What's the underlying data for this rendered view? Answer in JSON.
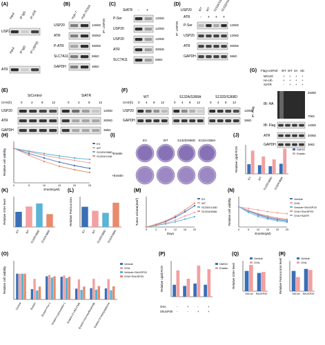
{
  "panels": {
    "A": {
      "letter": "(A)",
      "col_headers": [
        "Input",
        "IP IgG",
        "IP ATR"
      ],
      "rows": [
        "USP20",
        "ATR"
      ],
      "col_headers_b": [
        "Input",
        "IP IgG",
        "IP USP20"
      ]
    },
    "B": {
      "letter": "(B)",
      "col_headers": [
        "Huh-7",
        "Huh-7/OXA"
      ],
      "rows": [
        "USP20",
        "ATR",
        "P-ATR",
        "SLC7A11",
        "GAPDH"
      ],
      "kd": [
        "120kD",
        "300kD",
        "300kD",
        "55kD",
        "36kD"
      ]
    },
    "C": {
      "letter": "(C)",
      "treat": "SiATR",
      "signs": [
        "-",
        "+"
      ],
      "ip": "IP: USP20",
      "rows": [
        "P-Ser",
        "USP20",
        "USP20",
        "ATR",
        "SLC7A11"
      ],
      "kd": [
        "120kD",
        "120kD",
        "120kD",
        "300kD",
        "55kD"
      ]
    },
    "D": {
      "letter": "(D)",
      "header1": "USP20",
      "cols": [
        "WT",
        "WT",
        "S132A/S368A",
        "S132D/S368D"
      ],
      "header2": "ATR",
      "signs": [
        "-",
        "+",
        "+",
        "+"
      ],
      "ip": "IP: USP20",
      "rows": [
        "P-Ser",
        "USP20",
        "ATR",
        "GAPDH"
      ],
      "kd": [
        "120kD",
        "120kD",
        "300kD",
        "36kD"
      ]
    },
    "E": {
      "letter": "(E)",
      "groups": [
        "SiControl",
        "SiATR"
      ],
      "chx": "CHX(h)",
      "times": [
        "0",
        "4",
        "8",
        "12",
        "0",
        "4",
        "8",
        "12"
      ],
      "rows": [
        "USP20",
        "ATR",
        "GAPDH"
      ],
      "kd": [
        "120kD",
        "300kD",
        "36kD"
      ]
    },
    "F": {
      "letter": "(F)",
      "groups": [
        "WT",
        "S132A/S368A",
        "S132D/S368D"
      ],
      "chx": "CHX(h)",
      "times": [
        "0",
        "4",
        "8",
        "12"
      ],
      "rows": [
        "USP20",
        "GAPDH"
      ],
      "kd": [
        "120kD",
        "36kD"
      ]
    },
    "G": {
      "letter": "(G)",
      "flag": "Flag-USP20",
      "cols": [
        "WT",
        "WT",
        "SA",
        "SD"
      ],
      "mg132": "MG132",
      "haub": "HA-Ub",
      "siatr": "SiATR",
      "ip": "IP: Flag",
      "ib_ha": "IB: HA",
      "ib_flag": "IB: Flag",
      "rows": [
        "ATR",
        "GAPDH"
      ],
      "kd": [
        "250kD",
        "70kD",
        "120kD",
        "300kD",
        "36kD"
      ]
    },
    "H": {
      "letter": "(H)",
      "ylabel": "Relative cell viability",
      "xlabel": "Erastin(μM)",
      "legend": [
        "EV",
        "WT",
        "S132D/368D",
        "S132A/134A"
      ]
    },
    "I": {
      "letter": "(I)",
      "cols": [
        "EV",
        "WT",
        "S132D/368D",
        "S132A/368A"
      ],
      "rows": [
        "-Erastin",
        "+Erastin"
      ]
    },
    "J": {
      "letter": "(J)",
      "ylabel": "Relative Lipid ROS",
      "legend": [
        "DMSO",
        "Erastin"
      ],
      "cats": [
        "EV",
        "WT",
        "S132D/368D",
        "S132A/368A"
      ]
    },
    "K": {
      "letter": "(K)",
      "ylabel": "Relative GSH level",
      "cats": [
        "EV",
        "WT",
        "S132D/368D",
        "S132A/368A"
      ]
    },
    "L": {
      "letter": "(L)",
      "ylabel": "Relative Ferrous iron",
      "cats": [
        "EV",
        "WT",
        "S132D/368D",
        "S132A/368A"
      ]
    },
    "M": {
      "letter": "(M)",
      "ylabel": "Tumor volume(mm³)",
      "xlabel": "Days",
      "legend": [
        "EV",
        "WT",
        "S132D/134D",
        "S132A/368A"
      ]
    },
    "N": {
      "letter": "(N)",
      "ylabel": "Relative cell viability",
      "xlabel": "Erastin(μM)",
      "legend": [
        "Vehicle",
        "OXA",
        "Vehicle+ShUSP20",
        "OXA+ShUSP20",
        "OXA+SiATR"
      ]
    },
    "O": {
      "letter": "(O)",
      "ylabel": "Relative cell viability",
      "cats": [
        "Control",
        "Erastin",
        "Erastin+Fer-1",
        "Erastin+Liproxstatin-1",
        "Erastin+Z-VAD-FMK",
        "Erastin+necrosulfonamide",
        "Erastin+3-methyladenine"
      ],
      "legend": [
        "Vehicle",
        "OXA",
        "Vehicle+ShUSP20",
        "OXA+ShUSP20"
      ]
    },
    "P": {
      "letter": "(P)",
      "ylabel": "Relative Lipid ROS",
      "legend": [
        "DMSO",
        "Erastin"
      ],
      "oxa": "OXA",
      "shusp20": "ShUSP20",
      "signs_oxa": [
        "-",
        "+",
        "-",
        "+"
      ],
      "signs_sh": [
        "-",
        "-",
        "+",
        "+"
      ]
    },
    "Q": {
      "letter": "(Q)",
      "ylabel": "Relative GSH level",
      "legend": [
        "Vehicle",
        "OXA"
      ],
      "cats": [
        "ShCon",
        "ShUSP20"
      ]
    },
    "R": {
      "letter": "(R)",
      "ylabel": "Relative Ferrous iron level",
      "legend": [
        "Vehicle",
        "OXA"
      ],
      "cats": [
        "ShCon",
        "ShUSP20"
      ]
    }
  },
  "chart_data": [
    {
      "panel": "H",
      "type": "line",
      "x": [
        0,
        5,
        10,
        15,
        20,
        25
      ],
      "series": [
        {
          "name": "EV",
          "values": [
            1.0,
            0.85,
            0.72,
            0.6,
            0.5,
            0.42
          ]
        },
        {
          "name": "WT",
          "values": [
            1.0,
            0.9,
            0.8,
            0.72,
            0.65,
            0.58
          ]
        },
        {
          "name": "S132D/368D",
          "values": [
            1.0,
            0.92,
            0.85,
            0.78,
            0.72,
            0.68
          ]
        },
        {
          "name": "S132A/134A",
          "values": [
            1.0,
            0.8,
            0.62,
            0.48,
            0.38,
            0.3
          ]
        }
      ],
      "ylim": [
        0,
        1.2
      ]
    },
    {
      "panel": "J",
      "type": "bar",
      "categories": [
        "EV",
        "WT",
        "S132D/368D",
        "S132A/368A"
      ],
      "series": [
        {
          "name": "DMSO",
          "values": [
            1.0,
            0.9,
            0.8,
            1.05
          ]
        },
        {
          "name": "Erastin",
          "values": [
            2.4,
            1.8,
            1.5,
            2.6
          ]
        }
      ],
      "ylim": [
        0,
        3
      ]
    },
    {
      "panel": "K",
      "type": "bar",
      "categories": [
        "EV",
        "WT",
        "S132D/368D",
        "S132A/368A"
      ],
      "values": [
        1.0,
        1.35,
        1.55,
        0.85
      ],
      "ylim": [
        0,
        2
      ]
    },
    {
      "panel": "L",
      "type": "bar",
      "categories": [
        "EV",
        "WT",
        "S132D/368D",
        "S132A/368A"
      ],
      "values": [
        1.0,
        0.8,
        0.7,
        1.2
      ],
      "ylim": [
        0,
        1.5
      ]
    },
    {
      "panel": "M",
      "type": "line",
      "x": [
        0,
        4,
        8,
        12,
        16,
        20
      ],
      "series": [
        {
          "name": "EV",
          "values": [
            0,
            80,
            180,
            320,
            500,
            700
          ]
        },
        {
          "name": "WT",
          "values": [
            0,
            60,
            130,
            230,
            360,
            480
          ]
        },
        {
          "name": "S132D/134D",
          "values": [
            0,
            50,
            100,
            170,
            260,
            340
          ]
        },
        {
          "name": "S132A/368A",
          "values": [
            0,
            90,
            200,
            360,
            560,
            780
          ]
        }
      ],
      "ylim": [
        0,
        1000
      ]
    },
    {
      "panel": "N",
      "type": "line",
      "x": [
        0,
        5,
        10,
        15,
        20,
        25
      ],
      "series": [
        {
          "name": "Vehicle",
          "values": [
            1.0,
            0.78,
            0.6,
            0.46,
            0.36,
            0.3
          ]
        },
        {
          "name": "OXA",
          "values": [
            1.0,
            0.92,
            0.84,
            0.76,
            0.7,
            0.66
          ]
        },
        {
          "name": "Vehicle+ShUSP20",
          "values": [
            1.0,
            0.72,
            0.52,
            0.4,
            0.3,
            0.24
          ]
        },
        {
          "name": "OXA+ShUSP20",
          "values": [
            1.0,
            0.82,
            0.66,
            0.54,
            0.44,
            0.38
          ]
        },
        {
          "name": "OXA+SiATR",
          "values": [
            1.0,
            0.8,
            0.63,
            0.5,
            0.4,
            0.35
          ]
        }
      ],
      "ylim": [
        0,
        1.5
      ]
    },
    {
      "panel": "O",
      "type": "bar",
      "categories": [
        "Control",
        "Erastin",
        "Erastin+Fer-1",
        "Erastin+Liproxstatin-1",
        "Erastin+Z-VAD-FMK",
        "Erastin+necrosulfonamide",
        "Erastin+3-methyladenine"
      ],
      "series": [
        {
          "name": "Vehicle",
          "values": [
            1.0,
            0.4,
            0.9,
            0.88,
            0.42,
            0.44,
            0.43
          ]
        },
        {
          "name": "OXA",
          "values": [
            1.0,
            0.8,
            0.95,
            0.93,
            0.78,
            0.8,
            0.79
          ]
        },
        {
          "name": "Vehicle+ShUSP20",
          "values": [
            1.0,
            0.35,
            0.85,
            0.83,
            0.37,
            0.38,
            0.36
          ]
        },
        {
          "name": "OXA+ShUSP20",
          "values": [
            1.0,
            0.5,
            0.9,
            0.88,
            0.5,
            0.52,
            0.51
          ]
        }
      ],
      "ylim": [
        0,
        1.5
      ]
    },
    {
      "panel": "P",
      "type": "bar",
      "categories": [
        "1",
        "2",
        "3",
        "4"
      ],
      "series": [
        {
          "name": "DMSO",
          "values": [
            1.0,
            0.9,
            1.1,
            1.0
          ]
        },
        {
          "name": "Erastin",
          "values": [
            2.2,
            1.5,
            2.6,
            2.3
          ]
        }
      ],
      "ylim": [
        0,
        3
      ]
    },
    {
      "panel": "Q",
      "type": "bar",
      "categories": [
        "ShCon",
        "ShUSP20"
      ],
      "series": [
        {
          "name": "Vehicle",
          "values": [
            1.0,
            0.9
          ]
        },
        {
          "name": "OXA",
          "values": [
            1.3,
            0.95
          ]
        }
      ],
      "ylim": [
        0,
        1.5
      ]
    },
    {
      "panel": "R",
      "type": "bar",
      "categories": [
        "ShCon",
        "ShUSP20"
      ],
      "series": [
        {
          "name": "Vehicle",
          "values": [
            1.0,
            1.1
          ]
        },
        {
          "name": "OXA",
          "values": [
            0.7,
            1.05
          ]
        }
      ],
      "ylim": [
        0,
        1.5
      ]
    }
  ],
  "colors": {
    "c1": "#3a6fb7",
    "c2": "#f2a0a0",
    "c3": "#5ab4d6",
    "c4": "#e88a6c",
    "c5": "#9ea7d6",
    "blot_bg": "#d9d9d9",
    "band": "#1a1a1a"
  }
}
